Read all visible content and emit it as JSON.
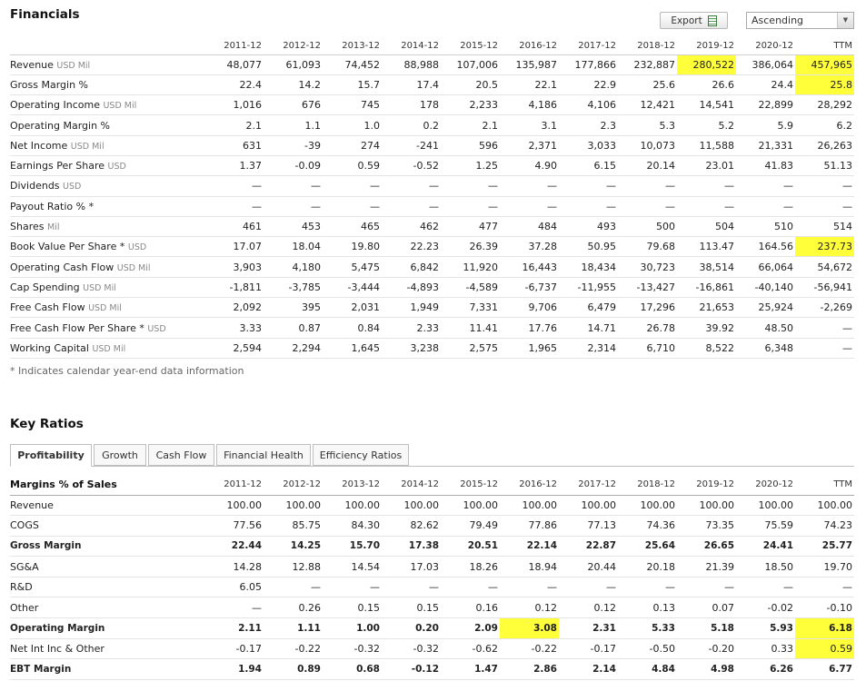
{
  "financials": {
    "title": "Financials",
    "export_label": "Export",
    "sort_value": "Ascending",
    "columns": [
      "2011-12",
      "2012-12",
      "2013-12",
      "2014-12",
      "2015-12",
      "2016-12",
      "2017-12",
      "2018-12",
      "2019-12",
      "2020-12",
      "TTM"
    ],
    "rows": [
      {
        "label": "Revenue",
        "unit": "USD Mil",
        "values": [
          "48,077",
          "61,093",
          "74,452",
          "88,988",
          "107,006",
          "135,987",
          "177,866",
          "232,887",
          "280,522",
          "386,064",
          "457,965"
        ]
      },
      {
        "label": "Gross Margin %",
        "unit": "",
        "values": [
          "22.4",
          "14.2",
          "15.7",
          "17.4",
          "20.5",
          "22.1",
          "22.9",
          "25.6",
          "26.6",
          "24.4",
          "25.8"
        ]
      },
      {
        "label": "Operating Income",
        "unit": "USD Mil",
        "values": [
          "1,016",
          "676",
          "745",
          "178",
          "2,233",
          "4,186",
          "4,106",
          "12,421",
          "14,541",
          "22,899",
          "28,292"
        ]
      },
      {
        "label": "Operating Margin %",
        "unit": "",
        "values": [
          "2.1",
          "1.1",
          "1.0",
          "0.2",
          "2.1",
          "3.1",
          "2.3",
          "5.3",
          "5.2",
          "5.9",
          "6.2"
        ]
      },
      {
        "label": "Net Income",
        "unit": "USD Mil",
        "values": [
          "631",
          "-39",
          "274",
          "-241",
          "596",
          "2,371",
          "3,033",
          "10,073",
          "11,588",
          "21,331",
          "26,263"
        ]
      },
      {
        "label": "Earnings Per Share",
        "unit": "USD",
        "values": [
          "1.37",
          "-0.09",
          "0.59",
          "-0.52",
          "1.25",
          "4.90",
          "6.15",
          "20.14",
          "23.01",
          "41.83",
          "51.13"
        ]
      },
      {
        "label": "Dividends",
        "unit": "USD",
        "values": [
          "—",
          "—",
          "—",
          "—",
          "—",
          "—",
          "—",
          "—",
          "—",
          "—",
          "—"
        ]
      },
      {
        "label": "Payout Ratio % *",
        "unit": "",
        "values": [
          "—",
          "—",
          "—",
          "—",
          "—",
          "—",
          "—",
          "—",
          "—",
          "—",
          "—"
        ]
      },
      {
        "label": "Shares",
        "unit": "Mil",
        "values": [
          "461",
          "453",
          "465",
          "462",
          "477",
          "484",
          "493",
          "500",
          "504",
          "510",
          "514"
        ]
      },
      {
        "label": "Book Value Per Share *",
        "unit": "USD",
        "values": [
          "17.07",
          "18.04",
          "19.80",
          "22.23",
          "26.39",
          "37.28",
          "50.95",
          "79.68",
          "113.47",
          "164.56",
          "237.73"
        ]
      },
      {
        "label": "Operating Cash Flow",
        "unit": "USD Mil",
        "values": [
          "3,903",
          "4,180",
          "5,475",
          "6,842",
          "11,920",
          "16,443",
          "18,434",
          "30,723",
          "38,514",
          "66,064",
          "54,672"
        ]
      },
      {
        "label": "Cap Spending",
        "unit": "USD Mil",
        "values": [
          "-1,811",
          "-3,785",
          "-3,444",
          "-4,893",
          "-4,589",
          "-6,737",
          "-11,955",
          "-13,427",
          "-16,861",
          "-40,140",
          "-56,941"
        ]
      },
      {
        "label": "Free Cash Flow",
        "unit": "USD Mil",
        "values": [
          "2,092",
          "395",
          "2,031",
          "1,949",
          "7,331",
          "9,706",
          "6,479",
          "17,296",
          "21,653",
          "25,924",
          "-2,269"
        ]
      },
      {
        "label": "Free Cash Flow Per Share *",
        "unit": "USD",
        "values": [
          "3.33",
          "0.87",
          "0.84",
          "2.33",
          "11.41",
          "17.76",
          "14.71",
          "26.78",
          "39.92",
          "48.50",
          "—"
        ]
      },
      {
        "label": "Working Capital",
        "unit": "USD Mil",
        "values": [
          "2,594",
          "2,294",
          "1,645",
          "3,238",
          "2,575",
          "1,965",
          "2,314",
          "6,710",
          "8,522",
          "6,348",
          "—"
        ]
      }
    ],
    "footnote": "* Indicates calendar year-end data information"
  },
  "key_ratios": {
    "title": "Key Ratios",
    "tabs": [
      "Profitability",
      "Growth",
      "Cash Flow",
      "Financial Health",
      "Efficiency Ratios"
    ],
    "active_tab": "Profitability",
    "header_label": "Margins % of Sales",
    "columns": [
      "2011-12",
      "2012-12",
      "2013-12",
      "2014-12",
      "2015-12",
      "2016-12",
      "2017-12",
      "2018-12",
      "2019-12",
      "2020-12",
      "TTM"
    ],
    "rows": [
      {
        "label": "Revenue",
        "bold": false,
        "values": [
          "100.00",
          "100.00",
          "100.00",
          "100.00",
          "100.00",
          "100.00",
          "100.00",
          "100.00",
          "100.00",
          "100.00",
          "100.00"
        ]
      },
      {
        "label": "COGS",
        "bold": false,
        "values": [
          "77.56",
          "85.75",
          "84.30",
          "82.62",
          "79.49",
          "77.86",
          "77.13",
          "74.36",
          "73.35",
          "75.59",
          "74.23"
        ]
      },
      {
        "label": "Gross Margin",
        "bold": true,
        "values": [
          "22.44",
          "14.25",
          "15.70",
          "17.38",
          "20.51",
          "22.14",
          "22.87",
          "25.64",
          "26.65",
          "24.41",
          "25.77"
        ]
      },
      {
        "label": "SG&A",
        "bold": false,
        "values": [
          "14.28",
          "12.88",
          "14.54",
          "17.03",
          "18.26",
          "18.94",
          "20.44",
          "20.18",
          "21.39",
          "18.50",
          "19.70"
        ]
      },
      {
        "label": "R&D",
        "bold": false,
        "values": [
          "6.05",
          "—",
          "—",
          "—",
          "—",
          "—",
          "—",
          "—",
          "—",
          "—",
          "—"
        ]
      },
      {
        "label": "Other",
        "bold": false,
        "values": [
          "—",
          "0.26",
          "0.15",
          "0.15",
          "0.16",
          "0.12",
          "0.12",
          "0.13",
          "0.07",
          "-0.02",
          "-0.10"
        ]
      },
      {
        "label": "Operating Margin",
        "bold": true,
        "values": [
          "2.11",
          "1.11",
          "1.00",
          "0.20",
          "2.09",
          "3.08",
          "2.31",
          "5.33",
          "5.18",
          "5.93",
          "6.18"
        ]
      },
      {
        "label": "Net Int Inc & Other",
        "bold": false,
        "values": [
          "-0.17",
          "-0.22",
          "-0.32",
          "-0.32",
          "-0.62",
          "-0.22",
          "-0.17",
          "-0.50",
          "-0.20",
          "0.33",
          "0.59"
        ]
      },
      {
        "label": "EBT Margin",
        "bold": true,
        "values": [
          "1.94",
          "0.89",
          "0.68",
          "-0.12",
          "1.47",
          "2.86",
          "2.14",
          "4.84",
          "4.98",
          "6.26",
          "6.77"
        ]
      }
    ]
  },
  "highlight_color": "#ffff3a"
}
